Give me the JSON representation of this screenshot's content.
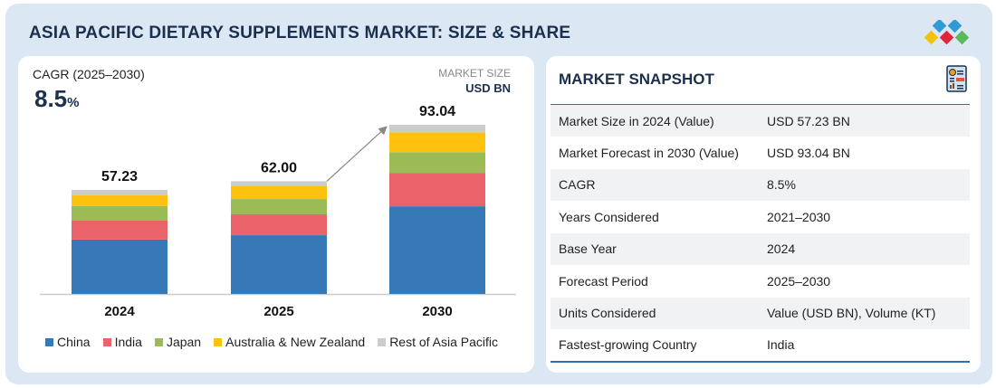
{
  "title": "ASIA PACIFIC DIETARY SUPPLEMENTS MARKET: SIZE & SHARE",
  "cagr": {
    "label": "CAGR (2025–2030)",
    "value": "8.5",
    "unit": "%"
  },
  "market_size": {
    "label": "MARKET SIZE",
    "unit": "USD BN"
  },
  "chart_data": {
    "type": "bar",
    "stacked": true,
    "categories": [
      "2024",
      "2025",
      "2030"
    ],
    "totals": [
      "57.23",
      "62.00",
      "93.04"
    ],
    "series": [
      {
        "name": "China",
        "color": "#3778b7",
        "values": [
          29.9,
          32.3,
          48.2
        ]
      },
      {
        "name": "India",
        "color": "#ea636b",
        "values": [
          10.4,
          11.5,
          18.4
        ]
      },
      {
        "name": "Japan",
        "color": "#9bbb55",
        "values": [
          8.0,
          8.4,
          11.4
        ]
      },
      {
        "name": "Australia & New Zealand",
        "color": "#fec10e",
        "values": [
          6.0,
          7.0,
          10.9
        ]
      },
      {
        "name": "Rest of Asia Pacific",
        "color": "#cccccc",
        "values": [
          2.93,
          2.8,
          4.14
        ]
      }
    ],
    "ylim": [
      0,
      100
    ],
    "legend": "bottom"
  },
  "snapshot": {
    "title": "MARKET SNAPSHOT",
    "rows": [
      {
        "k": "Market Size in 2024 (Value)",
        "v": "USD 57.23 BN"
      },
      {
        "k": "Market Forecast in 2030 (Value)",
        "v": "USD 93.04 BN"
      },
      {
        "k": "CAGR",
        "v": "8.5%"
      },
      {
        "k": "Years Considered",
        "v": "2021–2030"
      },
      {
        "k": "Base Year",
        "v": "2024"
      },
      {
        "k": "Forecast Period",
        "v": "2025–2030"
      },
      {
        "k": "Units Considered",
        "v": "Value (USD BN), Volume (KT)"
      },
      {
        "k": "Fastest-growing Country",
        "v": "India"
      }
    ]
  }
}
